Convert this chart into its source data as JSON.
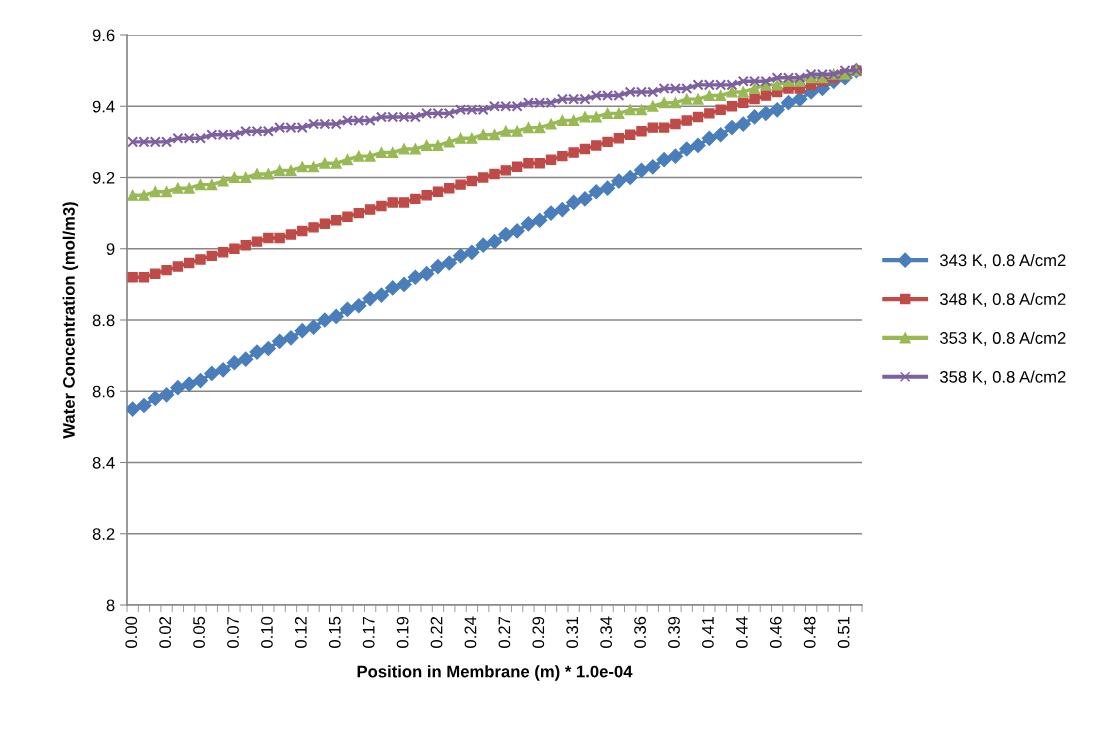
{
  "chart_data": {
    "type": "line",
    "xlabel": "Position in Membrane (m) * 1.0e-04",
    "ylabel": "Water Concentration (mol/m3)",
    "categories": [
      "0.00",
      null,
      null,
      "0.02",
      null,
      null,
      "0.05",
      null,
      null,
      "0.07",
      null,
      null,
      "0.10",
      null,
      null,
      "0.12",
      null,
      null,
      "0.15",
      null,
      null,
      "0.17",
      null,
      null,
      "0.19",
      null,
      null,
      "0.22",
      null,
      null,
      "0.24",
      null,
      null,
      "0.27",
      null,
      null,
      "0.29",
      null,
      null,
      "0.31",
      null,
      null,
      "0.34",
      null,
      null,
      "0.36",
      null,
      null,
      "0.39",
      null,
      null,
      "0.41",
      null,
      null,
      "0.44",
      null,
      null,
      "0.46",
      null,
      null,
      "0.48",
      null,
      null,
      "0.51",
      null
    ],
    "series": [
      {
        "name": "343 K, 0.8 A/cm2",
        "color": "#4a7ebb",
        "marker": "diamond",
        "values": [
          8.55,
          8.56,
          8.58,
          8.59,
          8.61,
          8.62,
          8.63,
          8.65,
          8.66,
          8.68,
          8.69,
          8.71,
          8.72,
          8.74,
          8.75,
          8.77,
          8.78,
          8.8,
          8.81,
          8.83,
          8.84,
          8.86,
          8.87,
          8.89,
          8.9,
          8.92,
          8.93,
          8.95,
          8.96,
          8.98,
          8.99,
          9.01,
          9.02,
          9.04,
          9.05,
          9.07,
          9.08,
          9.1,
          9.11,
          9.13,
          9.14,
          9.16,
          9.17,
          9.19,
          9.2,
          9.22,
          9.23,
          9.25,
          9.26,
          9.28,
          9.29,
          9.31,
          9.32,
          9.34,
          9.35,
          9.37,
          9.38,
          9.39,
          9.41,
          9.42,
          9.44,
          9.45,
          9.47,
          9.48,
          9.5
        ]
      },
      {
        "name": "348 K, 0.8 A/cm2",
        "color": "#be4b48",
        "marker": "square",
        "values": [
          8.92,
          8.92,
          8.93,
          8.94,
          8.95,
          8.96,
          8.97,
          8.98,
          8.99,
          9.0,
          9.01,
          9.02,
          9.03,
          9.03,
          9.04,
          9.05,
          9.06,
          9.07,
          9.08,
          9.09,
          9.1,
          9.11,
          9.12,
          9.13,
          9.13,
          9.14,
          9.15,
          9.16,
          9.17,
          9.18,
          9.19,
          9.2,
          9.21,
          9.22,
          9.23,
          9.24,
          9.24,
          9.25,
          9.26,
          9.27,
          9.28,
          9.29,
          9.3,
          9.31,
          9.32,
          9.33,
          9.34,
          9.34,
          9.35,
          9.36,
          9.37,
          9.38,
          9.39,
          9.4,
          9.41,
          9.42,
          9.43,
          9.44,
          9.45,
          9.45,
          9.46,
          9.47,
          9.48,
          9.49,
          9.5
        ]
      },
      {
        "name": "353 K, 0.8 A/cm2",
        "color": "#98b954",
        "marker": "triangle",
        "values": [
          9.15,
          9.15,
          9.16,
          9.16,
          9.17,
          9.17,
          9.18,
          9.18,
          9.19,
          9.2,
          9.2,
          9.21,
          9.21,
          9.22,
          9.22,
          9.23,
          9.23,
          9.24,
          9.24,
          9.25,
          9.26,
          9.26,
          9.27,
          9.27,
          9.28,
          9.28,
          9.29,
          9.29,
          9.3,
          9.31,
          9.31,
          9.32,
          9.32,
          9.33,
          9.33,
          9.34,
          9.34,
          9.35,
          9.36,
          9.36,
          9.37,
          9.37,
          9.38,
          9.38,
          9.39,
          9.39,
          9.4,
          9.41,
          9.41,
          9.42,
          9.42,
          9.43,
          9.43,
          9.44,
          9.44,
          9.45,
          9.46,
          9.46,
          9.47,
          9.47,
          9.48,
          9.48,
          9.49,
          9.49,
          9.5
        ]
      },
      {
        "name": "358 K, 0.8 A/cm2",
        "color": "#7d60a0",
        "marker": "cross",
        "values": [
          9.3,
          9.3,
          9.3,
          9.3,
          9.31,
          9.31,
          9.31,
          9.32,
          9.32,
          9.32,
          9.33,
          9.33,
          9.33,
          9.34,
          9.34,
          9.34,
          9.35,
          9.35,
          9.35,
          9.36,
          9.36,
          9.36,
          9.37,
          9.37,
          9.37,
          9.37,
          9.38,
          9.38,
          9.38,
          9.39,
          9.39,
          9.39,
          9.4,
          9.4,
          9.4,
          9.41,
          9.41,
          9.41,
          9.42,
          9.42,
          9.42,
          9.43,
          9.43,
          9.43,
          9.44,
          9.44,
          9.44,
          9.45,
          9.45,
          9.45,
          9.46,
          9.46,
          9.46,
          9.46,
          9.47,
          9.47,
          9.47,
          9.48,
          9.48,
          9.48,
          9.49,
          9.49,
          9.49,
          9.5,
          9.5
        ]
      }
    ],
    "ylim": [
      8,
      9.6
    ],
    "yticks": [
      8,
      8.2,
      8.4,
      8.6,
      8.8,
      9,
      9.2,
      9.4,
      9.6
    ],
    "grid": "y",
    "legend": "right",
    "line_style": "solid"
  }
}
